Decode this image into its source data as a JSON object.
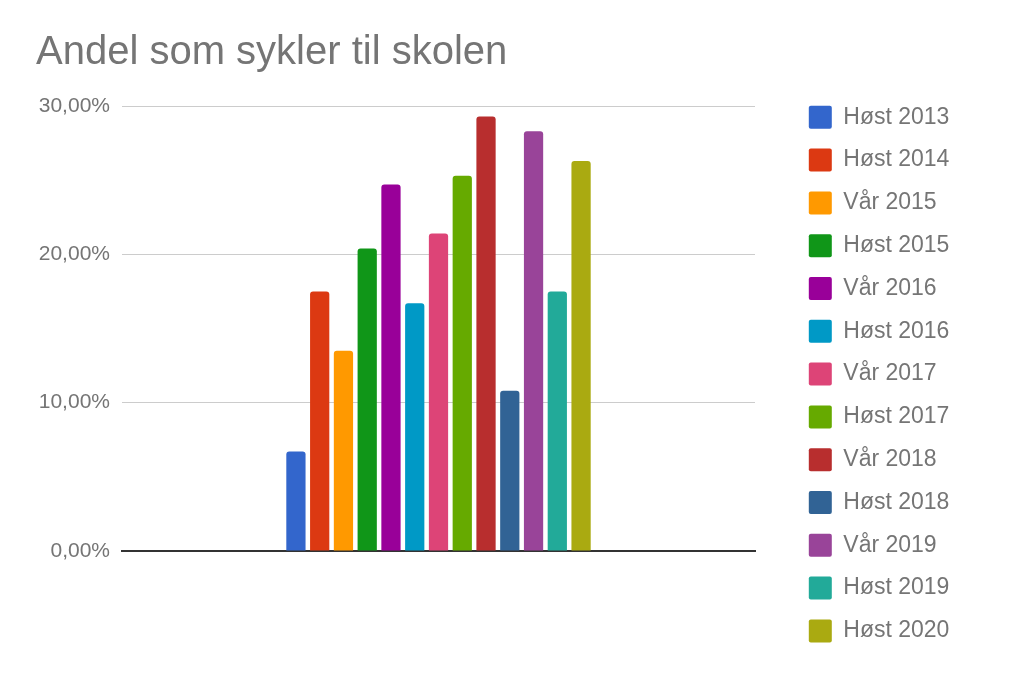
{
  "chart_data": {
    "type": "bar",
    "title": "Andel som sykler til skolen",
    "categories": [
      null
    ],
    "series": [
      {
        "name": "Høst 2013",
        "color": "#3366cc",
        "values": [
          6.7
        ]
      },
      {
        "name": "Høst 2014",
        "color": "#dc3912",
        "values": [
          17.5
        ]
      },
      {
        "name": "Vår 2015",
        "color": "#ff9900",
        "values": [
          13.5
        ]
      },
      {
        "name": "Høst 2015",
        "color": "#109618",
        "values": [
          20.4
        ]
      },
      {
        "name": "Vår 2016",
        "color": "#990099",
        "values": [
          24.7
        ]
      },
      {
        "name": "Høst 2016",
        "color": "#0099c6",
        "values": [
          16.7
        ]
      },
      {
        "name": "Vår 2017",
        "color": "#dd4477",
        "values": [
          21.4
        ]
      },
      {
        "name": "Høst 2017",
        "color": "#66aa00",
        "values": [
          25.3
        ]
      },
      {
        "name": "Vår 2018",
        "color": "#b82e2e",
        "values": [
          29.3
        ]
      },
      {
        "name": "Høst 2018",
        "color": "#316395",
        "values": [
          10.8
        ]
      },
      {
        "name": "Vår 2019",
        "color": "#994499",
        "values": [
          28.3
        ]
      },
      {
        "name": "Høst 2019",
        "color": "#22aa99",
        "values": [
          17.5
        ]
      },
      {
        "name": "Høst 2020",
        "color": "#aaaa11",
        "values": [
          26.3
        ]
      }
    ],
    "ylim": [
      0,
      30
    ],
    "yticks": [
      {
        "value": 0,
        "label": "0,00%"
      },
      {
        "value": 10,
        "label": "10,00%"
      },
      {
        "value": 20,
        "label": "20,00%"
      },
      {
        "value": 30,
        "label": "30,00%"
      }
    ],
    "grid": "y",
    "legend": "right",
    "tick_labels": "y"
  }
}
